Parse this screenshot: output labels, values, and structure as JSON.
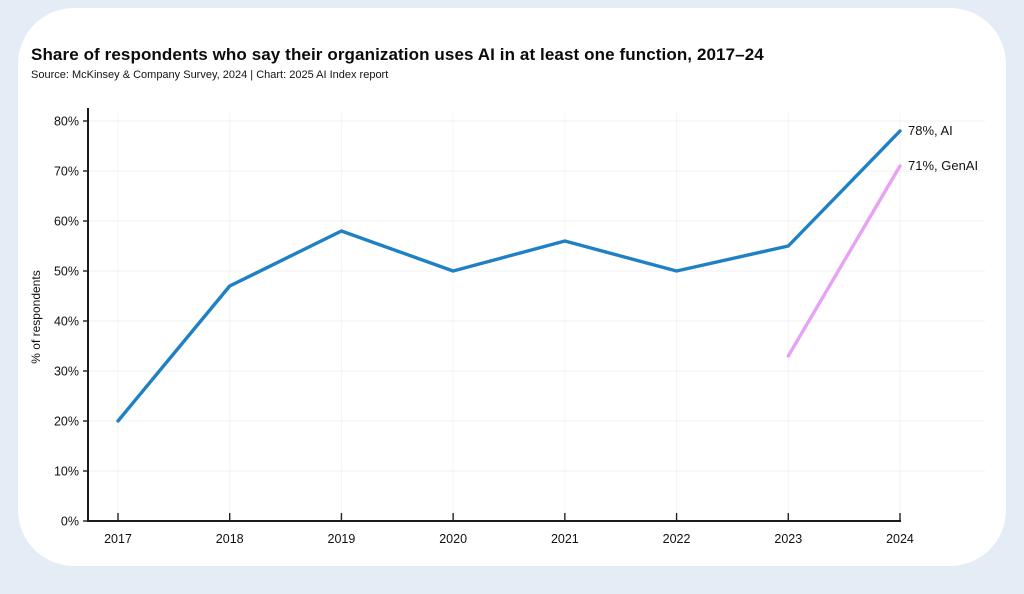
{
  "page": {
    "background_color": "#e4ecf5",
    "card_color": "#ffffff"
  },
  "header": {
    "title": "Share of respondents who say their organization uses AI in at least one function, 2017–24",
    "source": "Source: McKinsey & Company Survey, 2024 | Chart: 2025 AI Index report"
  },
  "chart_data": {
    "type": "line",
    "title": "Share of respondents who say their organization uses AI in at least one function, 2017–24",
    "source": "Source: McKinsey & Company Survey, 2024 | Chart: 2025 AI Index report",
    "x": [
      "2017",
      "2018",
      "2019",
      "2020",
      "2021",
      "2022",
      "2023",
      "2024"
    ],
    "series": [
      {
        "name": "AI",
        "color": "#1f80c4",
        "values": [
          20,
          47,
          58,
          50,
          56,
          50,
          55,
          78
        ],
        "end_label": "78%, AI"
      },
      {
        "name": "GenAI",
        "color": "#e8a2f5",
        "values": [
          null,
          null,
          null,
          null,
          null,
          null,
          33,
          71
        ],
        "end_label": "71%, GenAI"
      }
    ],
    "xlabel": "",
    "ylabel": "% of respondents",
    "ylim": [
      0,
      80
    ],
    "ytick_values": [
      0,
      10,
      20,
      30,
      40,
      50,
      60,
      70,
      80
    ],
    "ytick_labels": [
      "0%",
      "10%",
      "20%",
      "30%",
      "40%",
      "50%",
      "60%",
      "70%",
      "80%"
    ],
    "grid": true,
    "legend_position": "end-of-line-labels"
  }
}
